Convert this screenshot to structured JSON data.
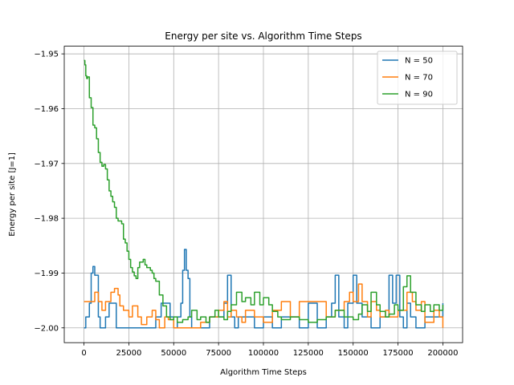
{
  "chart_data": {
    "type": "line",
    "title": "Energy per site vs. Algorithm Time Steps",
    "xlabel": "Algorithm Time Steps",
    "ylabel": "Energy per site [J=1]",
    "xlim": [
      -11000,
      211000
    ],
    "ylim": [
      -2.0027,
      -1.9486
    ],
    "xticks": [
      0,
      25000,
      50000,
      75000,
      100000,
      125000,
      150000,
      175000,
      200000
    ],
    "xtick_labels": [
      "0",
      "25000",
      "50000",
      "75000",
      "100000",
      "125000",
      "150000",
      "175000",
      "200000"
    ],
    "yticks": [
      -2.0,
      -1.99,
      -1.98,
      -1.97,
      -1.96,
      -1.95
    ],
    "ytick_labels": [
      "−2.00",
      "−1.99",
      "−1.98",
      "−1.97",
      "−1.96",
      "−1.95"
    ],
    "grid": true,
    "legend_position": "upper right",
    "series": [
      {
        "name": "N = 50",
        "color": "#1f77b4",
        "x": [
          0,
          1000,
          3000,
          4000,
          5000,
          6000,
          7000,
          8000,
          9000,
          10000,
          12000,
          14000,
          16000,
          18000,
          20000,
          22000,
          25000,
          30000,
          35000,
          40000,
          42000,
          43000,
          45000,
          48000,
          50000,
          52000,
          54000,
          55000,
          56000,
          57000,
          58000,
          59000,
          60000,
          62000,
          65000,
          70000,
          75000,
          78000,
          80000,
          82000,
          84000,
          86000,
          90000,
          95000,
          100000,
          105000,
          110000,
          115000,
          120000,
          125000,
          130000,
          135000,
          138000,
          140000,
          142000,
          145000,
          147000,
          150000,
          152000,
          155000,
          160000,
          165000,
          168000,
          170000,
          172000,
          174000,
          176000,
          178000,
          180000,
          182000,
          185000,
          188000,
          190000,
          195000,
          200000
        ],
        "y": [
          -2.0,
          -1.998,
          -1.9955,
          -1.99,
          -1.9888,
          -1.9904,
          -1.9904,
          -1.998,
          -2.0,
          -2.0,
          -1.998,
          -1.9955,
          -1.9955,
          -2.0,
          -2.0,
          -2.0,
          -2.0,
          -2.0,
          -2.0,
          -1.998,
          -1.998,
          -1.9955,
          -1.9955,
          -1.998,
          -2.0,
          -1.998,
          -1.9955,
          -1.9895,
          -1.9857,
          -1.9895,
          -1.991,
          -1.998,
          -2.0,
          -2.0,
          -2.0,
          -1.998,
          -1.998,
          -1.9955,
          -1.9904,
          -1.998,
          -2.0,
          -1.998,
          -1.998,
          -2.0,
          -1.998,
          -2.0,
          -1.998,
          -1.998,
          -2.0,
          -1.9955,
          -2.0,
          -1.998,
          -1.9955,
          -1.9904,
          -1.998,
          -2.0,
          -1.9955,
          -1.9904,
          -1.9955,
          -1.998,
          -2.0,
          -1.998,
          -1.998,
          -1.9904,
          -1.9955,
          -1.9904,
          -1.998,
          -2.0,
          -1.9955,
          -1.998,
          -2.0,
          -2.0,
          -1.998,
          -1.998,
          -1.9955
        ]
      },
      {
        "name": "N = 70",
        "color": "#ff7f0e",
        "x": [
          0,
          3000,
          6000,
          8000,
          10000,
          12000,
          15000,
          17000,
          19000,
          20000,
          22000,
          25000,
          27000,
          30000,
          32000,
          35000,
          38000,
          40000,
          42000,
          45000,
          47000,
          50000,
          55000,
          60000,
          65000,
          70000,
          75000,
          78000,
          80000,
          82000,
          85000,
          88000,
          90000,
          95000,
          100000,
          105000,
          110000,
          115000,
          120000,
          125000,
          130000,
          135000,
          140000,
          145000,
          148000,
          150000,
          153000,
          155000,
          158000,
          160000,
          163000,
          165000,
          168000,
          170000,
          175000,
          180000,
          183000,
          185000,
          188000,
          190000,
          195000,
          198000,
          200000
        ],
        "y": [
          -1.9952,
          -1.9952,
          -1.9935,
          -1.9952,
          -1.9968,
          -1.9952,
          -1.9935,
          -1.9928,
          -1.994,
          -1.996,
          -1.9968,
          -1.998,
          -1.996,
          -1.998,
          -1.9994,
          -1.998,
          -1.9968,
          -1.9985,
          -2.0,
          -1.998,
          -1.9985,
          -2.0,
          -2.0,
          -2.0,
          -1.999,
          -1.998,
          -1.9968,
          -1.9952,
          -1.998,
          -1.9968,
          -1.998,
          -1.999,
          -1.9968,
          -1.998,
          -1.999,
          -1.9968,
          -1.9952,
          -1.998,
          -1.9952,
          -1.9952,
          -1.9952,
          -1.998,
          -1.9968,
          -1.9952,
          -1.9935,
          -1.9952,
          -1.992,
          -1.9952,
          -1.998,
          -1.9952,
          -1.9968,
          -1.998,
          -1.9968,
          -1.998,
          -1.9968,
          -1.9935,
          -1.9952,
          -1.9968,
          -1.9952,
          -1.999,
          -1.9968,
          -1.998,
          -2.0
        ]
      },
      {
        "name": "N = 90",
        "color": "#2ca02c",
        "x": [
          0,
          500,
          1000,
          1500,
          2000,
          3000,
          4000,
          5000,
          6000,
          7000,
          8000,
          9000,
          10000,
          11000,
          12000,
          13000,
          14000,
          15000,
          16000,
          17000,
          18000,
          19000,
          20000,
          21000,
          22000,
          23000,
          24000,
          25000,
          26000,
          27000,
          28000,
          29000,
          30000,
          31000,
          32000,
          33000,
          34000,
          35000,
          36000,
          37000,
          38000,
          39000,
          40000,
          42000,
          44000,
          46000,
          48000,
          50000,
          52000,
          55000,
          58000,
          60000,
          63000,
          65000,
          68000,
          70000,
          73000,
          75000,
          78000,
          80000,
          82000,
          85000,
          88000,
          90000,
          93000,
          95000,
          98000,
          100000,
          103000,
          105000,
          108000,
          110000,
          115000,
          120000,
          125000,
          130000,
          135000,
          140000,
          145000,
          150000,
          153000,
          155000,
          158000,
          160000,
          163000,
          165000,
          168000,
          170000,
          173000,
          175000,
          178000,
          180000,
          182000,
          185000,
          188000,
          190000,
          193000,
          195000,
          198000,
          200000
        ],
        "y": [
          -1.9512,
          -1.952,
          -1.954,
          -1.9545,
          -1.9542,
          -1.958,
          -1.9598,
          -1.963,
          -1.9635,
          -1.9655,
          -1.968,
          -1.9698,
          -1.9705,
          -1.9702,
          -1.971,
          -1.973,
          -1.975,
          -1.976,
          -1.977,
          -1.978,
          -1.98,
          -1.9805,
          -1.9805,
          -1.981,
          -1.9838,
          -1.9845,
          -1.986,
          -1.9875,
          -1.989,
          -1.9898,
          -1.9905,
          -1.991,
          -1.989,
          -1.988,
          -1.988,
          -1.9875,
          -1.9885,
          -1.989,
          -1.989,
          -1.9895,
          -1.99,
          -1.991,
          -1.9915,
          -1.994,
          -1.996,
          -1.998,
          -1.9985,
          -1.998,
          -1.999,
          -1.9985,
          -1.998,
          -1.9968,
          -1.9985,
          -1.998,
          -1.999,
          -1.998,
          -1.9968,
          -1.998,
          -1.9985,
          -1.997,
          -1.9958,
          -1.9935,
          -1.9952,
          -1.9945,
          -1.9958,
          -1.9935,
          -1.9958,
          -1.9945,
          -1.9958,
          -1.997,
          -1.998,
          -1.9985,
          -1.998,
          -1.9985,
          -1.999,
          -1.9985,
          -1.998,
          -1.9968,
          -1.998,
          -1.9985,
          -1.9975,
          -1.9958,
          -1.997,
          -1.9935,
          -1.9958,
          -1.997,
          -1.998,
          -1.9975,
          -1.9958,
          -1.9968,
          -1.9925,
          -1.9905,
          -1.9935,
          -1.9958,
          -1.997,
          -1.9958,
          -1.997,
          -1.9958,
          -1.9968,
          -1.9958
        ]
      }
    ]
  }
}
